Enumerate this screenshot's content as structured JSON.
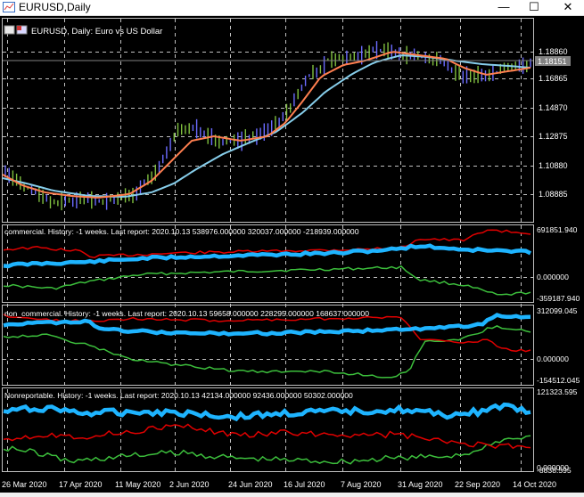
{
  "window": {
    "title": "EURUSD,Daily",
    "min_glyph": "—",
    "max_glyph": "☐",
    "close_glyph": "✕"
  },
  "main_panel": {
    "header": "EURUSD, Daily:  Euro vs US Dollar",
    "price_ticks": [
      "1.18860",
      "1.16865",
      "1.14870",
      "1.12875",
      "1.10880",
      "1.08885"
    ],
    "current_price": "1.18151"
  },
  "panels": [
    {
      "header": "commercial. History: -1 weeks. Last report: 2020.10.13     538976.000000  320037.000000  -218939.000000",
      "ticks": [
        "691851.940",
        "0.000000",
        "-359187.940"
      ]
    },
    {
      "header": "non_commercial. History: -1 weeks. Last report: 2020.10.13     59658.000000  228295.000000  168637.000000",
      "ticks": [
        "312099.045",
        "0.000000",
        "-154512.045"
      ]
    },
    {
      "header": "Nonreportable. History: -1 weeks. Last report: 2020.10.13     42134.000000  92436.000000  50302.000000",
      "ticks": [
        "121323.595",
        "0.000000",
        "-8838.595"
      ]
    }
  ],
  "x_axis": [
    "26 Mar 2020",
    "17 Apr 2020",
    "11 May 2020",
    "2 Jun 2020",
    "24 Jun 2020",
    "16 Jul 2020",
    "7 Aug 2020",
    "31 Aug 2020",
    "22 Sep 2020",
    "14 Oct 2020"
  ],
  "colors": {
    "background": "#000000",
    "grid": "#c0c0c0",
    "text": "#ffffff",
    "ma_fast": "#ff7f50",
    "ma_slow": "#87ceeb",
    "bull_candle": "#6b6bff",
    "bear_candle": "#7fbf3f",
    "cot_thick": "#1eb4ff",
    "cot_red": "#e00000",
    "cot_green": "#3cbf3c",
    "price_line": "#808080"
  }
}
